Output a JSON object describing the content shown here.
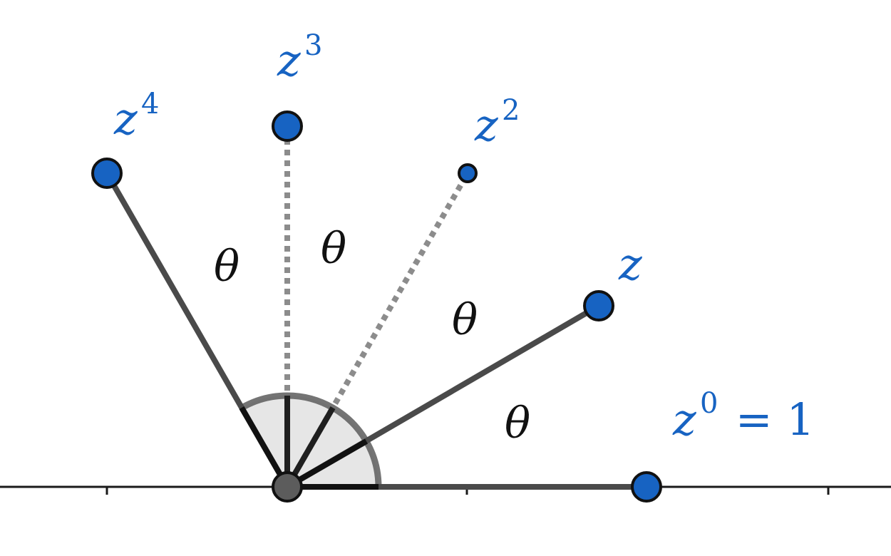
{
  "diagram": {
    "colors": {
      "point": "#1763c2",
      "label": "#1763c2",
      "solid_ray": "#4a4a4a",
      "dotted_ray": "#8c8c8c",
      "axis": "#1a1a1a",
      "sector_fill": "#e6e6e6",
      "origin": "#5c5c5c"
    },
    "labels": {
      "z0": {
        "base": "z",
        "sup": "0",
        "rest": " = 1"
      },
      "z1": {
        "base": "z"
      },
      "z2": {
        "base": "z",
        "sup": "2"
      },
      "z3": {
        "base": "z",
        "sup": "3"
      },
      "z4": {
        "base": "z",
        "sup": "4"
      }
    },
    "angle_label": "θ"
  }
}
